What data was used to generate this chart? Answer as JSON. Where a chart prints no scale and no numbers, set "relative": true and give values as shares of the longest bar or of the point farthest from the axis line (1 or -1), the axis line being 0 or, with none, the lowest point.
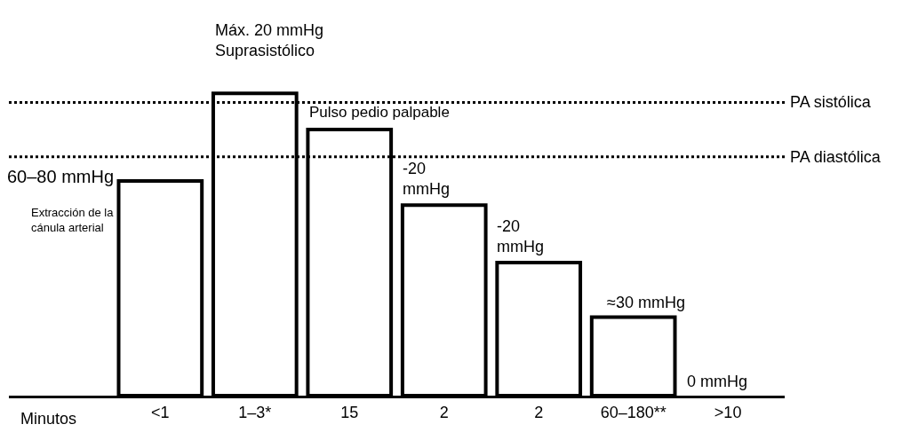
{
  "chart_data": {
    "type": "bar",
    "relative": true,
    "xlabel": "Minutos",
    "categories": [
      "<1",
      "1–3*",
      "15",
      "2",
      "2",
      "60–180**",
      ">10"
    ],
    "values": [
      0.71,
      1,
      0.88,
      0.63,
      0.44,
      0.26,
      0
    ],
    "color": "#ffffff",
    "ref_lines": [
      {
        "axis": "y",
        "value": 0.97,
        "label": "PA sistólica",
        "line_style": "dotted",
        "color": "#000000"
      },
      {
        "axis": "y",
        "value": 0.79,
        "label": "PA diastólica",
        "line_style": "dotted",
        "color": "#000000"
      }
    ],
    "annotations": [
      "60–80 mmHg",
      "Extracción de la\ncánula arterial",
      "Máx. 20 mmHg\nSuprasistólico",
      "Pulso pedio palpable",
      "-20\nmmHg",
      "-20\nmmHg",
      "≈30 mmHg",
      "0 mmHg"
    ],
    "legend": false
  }
}
